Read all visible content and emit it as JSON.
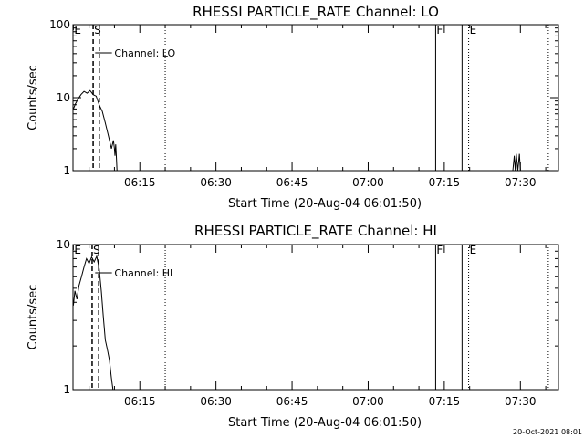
{
  "footer": {
    "stamp": "20-Oct-2021 08:01"
  },
  "chart_data": [
    {
      "type": "line",
      "title": "RHESSI PARTICLE_RATE Channel: LO",
      "xlabel": "Start Time (20-Aug-04 06:01:50)",
      "ylabel": "Counts/sec",
      "x_tick_labels": [
        "06:15",
        "06:30",
        "06:45",
        "07:00",
        "07:15",
        "07:30"
      ],
      "x_ticks_min": [
        15,
        30,
        45,
        60,
        75,
        90
      ],
      "x_range_min": [
        1.83,
        97.5
      ],
      "y_scale": "log",
      "y_tick_labels": [
        "1",
        "10",
        "100"
      ],
      "y_ticks": [
        1,
        10,
        100
      ],
      "y_range": [
        1,
        100
      ],
      "series_label": "Channel: LO",
      "segments": [
        {
          "x": [
            1.9,
            2.3,
            2.8,
            3.4,
            4.0,
            4.6,
            5.2,
            5.8,
            6.4,
            7.0,
            7.6,
            8.2,
            8.8,
            9.4,
            9.8,
            10.0,
            10.1,
            10.25,
            10.4,
            10.5
          ],
          "y": [
            7.0,
            8.2,
            9.5,
            11.0,
            12.2,
            11.5,
            12.5,
            11.0,
            10.5,
            8.0,
            6.5,
            4.5,
            3.0,
            2.0,
            2.6,
            2.0,
            1.6,
            2.3,
            1.4,
            1.0
          ]
        },
        {
          "x": [
            88.5,
            88.8,
            89.0,
            89.2,
            89.5,
            89.8,
            90.0
          ],
          "y": [
            1.0,
            1.6,
            1.0,
            1.7,
            1.0,
            1.7,
            1.0
          ]
        }
      ],
      "markers": [
        {
          "label": "E",
          "x": 1.9,
          "style": "solid-short"
        },
        {
          "label": "S",
          "x": 5.8,
          "style": "dashed"
        },
        {
          "label": "",
          "x": 7.0,
          "style": "dashed"
        },
        {
          "label": "",
          "x": 20.0,
          "style": "dotted"
        },
        {
          "label": "F",
          "x": 73.3,
          "style": "solid"
        },
        {
          "label": "",
          "x": 78.5,
          "style": "solid"
        },
        {
          "label": "E",
          "x": 79.8,
          "style": "dotted"
        },
        {
          "label": "",
          "x": 95.5,
          "style": "dotted"
        }
      ]
    },
    {
      "type": "line",
      "title": "RHESSI PARTICLE_RATE Channel: HI",
      "xlabel": "Start Time (20-Aug-04 06:01:50)",
      "ylabel": "Counts/sec",
      "x_tick_labels": [
        "06:15",
        "06:30",
        "06:45",
        "07:00",
        "07:15",
        "07:30"
      ],
      "x_ticks_min": [
        15,
        30,
        45,
        60,
        75,
        90
      ],
      "x_range_min": [
        1.83,
        97.5
      ],
      "y_scale": "log",
      "y_tick_labels": [
        "1",
        "10"
      ],
      "y_ticks": [
        1,
        10
      ],
      "y_range": [
        1,
        10
      ],
      "series_label": "Channel: HI",
      "segments": [
        {
          "x": [
            1.9,
            2.2,
            2.6,
            3.0,
            3.5,
            4.0,
            4.5,
            5.0,
            5.5,
            6.0,
            6.5,
            7.0,
            7.4,
            7.8,
            8.2,
            8.6,
            9.0,
            9.4,
            9.7
          ],
          "y": [
            3.8,
            4.8,
            4.2,
            5.2,
            6.0,
            7.0,
            8.0,
            7.4,
            8.2,
            7.6,
            8.3,
            6.8,
            4.8,
            3.2,
            2.2,
            1.9,
            1.6,
            1.2,
            1.0
          ]
        }
      ],
      "markers": [
        {
          "label": "E",
          "x": 1.9,
          "style": "solid-short"
        },
        {
          "label": "S",
          "x": 5.6,
          "style": "dashed"
        },
        {
          "label": "",
          "x": 6.9,
          "style": "dashed"
        },
        {
          "label": "",
          "x": 20.0,
          "style": "dotted"
        },
        {
          "label": "F",
          "x": 73.3,
          "style": "solid"
        },
        {
          "label": "",
          "x": 78.5,
          "style": "solid"
        },
        {
          "label": "E",
          "x": 79.8,
          "style": "dotted"
        },
        {
          "label": "",
          "x": 95.5,
          "style": "dotted"
        }
      ]
    }
  ]
}
